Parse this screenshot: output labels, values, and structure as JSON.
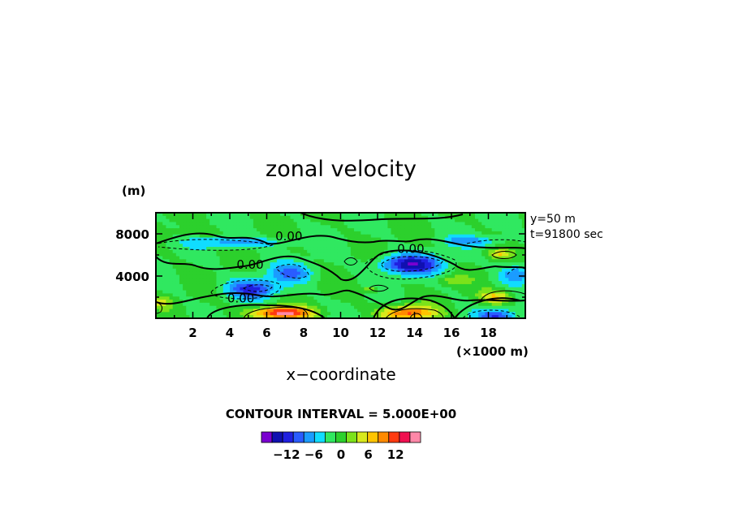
{
  "chart_data": {
    "type": "heatmap",
    "title": "zonal velocity",
    "xlabel": "x−coordinate",
    "x_unit": "(×1000 m)",
    "y_unit": "(m)",
    "xlim": [
      0,
      20
    ],
    "ylim": [
      0,
      10000
    ],
    "xticks": [
      2,
      4,
      6,
      8,
      10,
      12,
      14,
      16,
      18
    ],
    "xtick_labels": [
      "2",
      "4",
      "6",
      "8",
      "10",
      "12",
      "14",
      "16",
      "18"
    ],
    "yticks": [
      4000,
      8000
    ],
    "ytick_labels": [
      "4000",
      "8000"
    ],
    "annotations": [
      "y=50 m",
      "t=91800 sec"
    ],
    "contour_interval_label": "CONTOUR INTERVAL = 5.000E+00",
    "contour_labels": [
      {
        "text": "0.00",
        "x": 7.2,
        "y": 7400
      },
      {
        "text": "0.00",
        "x": 5.1,
        "y": 4700
      },
      {
        "text": "0.00",
        "x": 4.6,
        "y": 1500
      },
      {
        "text": "0.00",
        "x": 13.8,
        "y": 6200
      }
    ],
    "colorbar": {
      "levels": [
        -15,
        -12.5,
        -10,
        -7.5,
        -5,
        -2.5,
        0,
        2.5,
        5,
        7.5,
        10,
        12.5,
        15
      ],
      "tick_values": [
        -12,
        -6,
        0,
        6,
        12
      ],
      "tick_labels": [
        "−12",
        "−6",
        "0",
        "6",
        "12"
      ],
      "colors": [
        "#7a00d0",
        "#1010b0",
        "#2020e0",
        "#2a5cff",
        "#1b9cff",
        "#10dcff",
        "#30e860",
        "#2cd02c",
        "#7ce21a",
        "#d8e81c",
        "#ffc400",
        "#ff8a00",
        "#ff3a10",
        "#f01050",
        "#ff88a8"
      ]
    },
    "field_features": [
      {
        "x": 6.8,
        "y": 500,
        "u": 16,
        "rx": 1.6,
        "ry": 600
      },
      {
        "x": 13.6,
        "y": 500,
        "u": 13,
        "rx": 1.4,
        "ry": 700
      },
      {
        "x": 18.5,
        "y": 200,
        "u": -10,
        "rx": 1.0,
        "ry": 600
      },
      {
        "x": 13.8,
        "y": 5100,
        "u": -14,
        "rx": 1.6,
        "ry": 900
      },
      {
        "x": 5.2,
        "y": 2800,
        "u": -10,
        "rx": 1.4,
        "ry": 900
      },
      {
        "x": 7.3,
        "y": 4300,
        "u": -7,
        "rx": 1.2,
        "ry": 900
      },
      {
        "x": 4.5,
        "y": 7200,
        "u": -7,
        "rx": 2.5,
        "ry": 500
      },
      {
        "x": 17.2,
        "y": 7300,
        "u": -6,
        "rx": 1.5,
        "ry": 500
      },
      {
        "x": 19.5,
        "y": 4200,
        "u": -7,
        "rx": 0.8,
        "ry": 800
      },
      {
        "x": 18.4,
        "y": 2000,
        "u": 8,
        "rx": 0.9,
        "ry": 700
      },
      {
        "x": 18.6,
        "y": 6100,
        "u": 6,
        "rx": 0.6,
        "ry": 400
      },
      {
        "x": 11.6,
        "y": 2700,
        "u": 5,
        "rx": 0.5,
        "ry": 300
      },
      {
        "x": 0.3,
        "y": 1500,
        "u": 6,
        "rx": 0.5,
        "ry": 500
      },
      {
        "x": 16.0,
        "y": 3600,
        "u": 4,
        "rx": 0.8,
        "ry": 400
      },
      {
        "x": 2.0,
        "y": 8000,
        "u": 2,
        "rx": 1.5,
        "ry": 600
      }
    ]
  }
}
